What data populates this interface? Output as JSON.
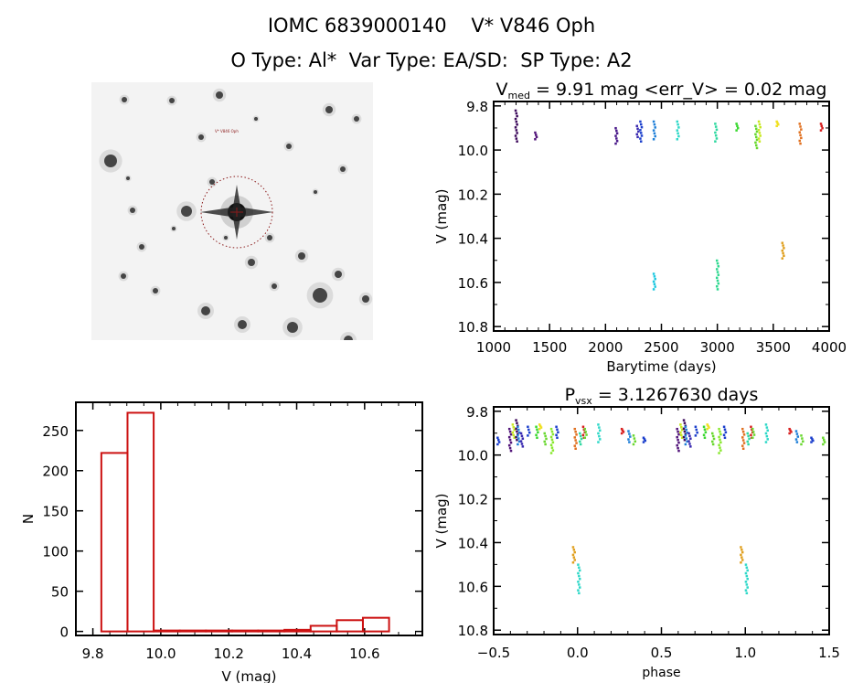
{
  "header": {
    "title_line1": "IOMC 6839000140    V* V846 Oph",
    "title_line2": "O Type: Al*  Var Type: EA/SD:  SP Type: A2"
  },
  "sky_image": {
    "alt": "Sky survey cutout centered on target with dotted red aperture circle and cross marker",
    "target_label": "V* V846 Oph",
    "marker_color": "#8b1a1a"
  },
  "chart_data": [
    {
      "id": "lightcurve",
      "type": "scatter",
      "title": "V_med = 9.91 mag <err_V> = 0.02 mag",
      "title_main": "V",
      "title_sub": "med",
      "title_rest": " = 9.91 mag <err_V> = 0.02 mag",
      "xlabel": "Barytime (days)",
      "ylabel": "V (mag)",
      "xlim": [
        1000,
        4000
      ],
      "ylim": [
        10.82,
        9.78
      ],
      "x_ticks": [
        1000,
        1500,
        2000,
        2500,
        3000,
        3500,
        4000
      ],
      "y_ticks": [
        9.8,
        10.0,
        10.2,
        10.4,
        10.6,
        10.8
      ],
      "y_tick_labels": [
        "9.8",
        "10.0",
        "10.2",
        "10.4",
        "10.6",
        "10.8"
      ],
      "groups": [
        {
          "x": 1205,
          "ymin": 9.82,
          "ymax": 9.96,
          "color": "#3d0a5c"
        },
        {
          "x": 1380,
          "ymin": 9.92,
          "ymax": 9.95,
          "color": "#52157a"
        },
        {
          "x": 2100,
          "ymin": 9.9,
          "ymax": 9.97,
          "color": "#4a1a8a"
        },
        {
          "x": 2290,
          "ymin": 9.89,
          "ymax": 9.94,
          "color": "#3a2ab0"
        },
        {
          "x": 2320,
          "ymin": 9.87,
          "ymax": 9.96,
          "color": "#1b3fcc"
        },
        {
          "x": 2440,
          "ymin": 9.87,
          "ymax": 9.95,
          "color": "#1f7fd8"
        },
        {
          "x": 2440,
          "ymin": 10.56,
          "ymax": 10.63,
          "color": "#1fc8e0"
        },
        {
          "x": 2650,
          "ymin": 9.87,
          "ymax": 9.95,
          "color": "#2fd8c8"
        },
        {
          "x": 2990,
          "ymin": 9.88,
          "ymax": 9.96,
          "color": "#2fd8a0"
        },
        {
          "x": 3005,
          "ymin": 10.5,
          "ymax": 10.63,
          "color": "#2fd890"
        },
        {
          "x": 3180,
          "ymin": 9.88,
          "ymax": 9.91,
          "color": "#3ad830"
        },
        {
          "x": 3350,
          "ymin": 9.89,
          "ymax": 9.99,
          "color": "#6ad830"
        },
        {
          "x": 3380,
          "ymin": 9.87,
          "ymax": 9.96,
          "color": "#c8e820"
        },
        {
          "x": 3540,
          "ymin": 9.87,
          "ymax": 9.89,
          "color": "#f0e020"
        },
        {
          "x": 3590,
          "ymin": 10.42,
          "ymax": 10.49,
          "color": "#e0a020"
        },
        {
          "x": 3745,
          "ymin": 9.88,
          "ymax": 9.97,
          "color": "#e07020"
        },
        {
          "x": 3935,
          "ymin": 9.88,
          "ymax": 9.91,
          "color": "#d82020"
        }
      ]
    },
    {
      "id": "histogram",
      "type": "bar",
      "title": "",
      "xlabel": "V (mag)",
      "ylabel": "N",
      "xlim": [
        9.75,
        10.77
      ],
      "ylim": [
        -5,
        285
      ],
      "x_ticks": [
        9.8,
        10.0,
        10.2,
        10.4,
        10.6
      ],
      "x_tick_labels": [
        "9.8",
        "10.0",
        "10.2",
        "10.4",
        "10.6"
      ],
      "y_ticks": [
        0,
        50,
        100,
        150,
        200,
        250
      ],
      "y_tick_labels": [
        "0",
        "50",
        "100",
        "150",
        "200",
        "250"
      ],
      "bar_color": "#cc1111",
      "bins": [
        {
          "x0": 9.825,
          "x1": 9.902,
          "count": 222
        },
        {
          "x0": 9.902,
          "x1": 9.979,
          "count": 272
        },
        {
          "x0": 9.979,
          "x1": 10.056,
          "count": 1
        },
        {
          "x0": 10.056,
          "x1": 10.133,
          "count": 0
        },
        {
          "x0": 10.133,
          "x1": 10.21,
          "count": 0
        },
        {
          "x0": 10.21,
          "x1": 10.287,
          "count": 0
        },
        {
          "x0": 10.287,
          "x1": 10.364,
          "count": 0
        },
        {
          "x0": 10.364,
          "x1": 10.441,
          "count": 2
        },
        {
          "x0": 10.441,
          "x1": 10.518,
          "count": 7
        },
        {
          "x0": 10.518,
          "x1": 10.595,
          "count": 14
        },
        {
          "x0": 10.595,
          "x1": 10.672,
          "count": 17
        }
      ]
    },
    {
      "id": "phased",
      "type": "scatter",
      "title": "P_vsx = 3.1267630 days",
      "title_main": "P",
      "title_sub": "vsx",
      "title_rest": " = 3.1267630 days",
      "xlabel": "phase",
      "ylabel": "V (mag)",
      "xlim": [
        -0.5,
        1.5
      ],
      "ylim": [
        10.82,
        9.78
      ],
      "x_ticks": [
        -0.5,
        0.0,
        0.5,
        1.0,
        1.5
      ],
      "x_tick_labels": [
        "−0.5",
        "0.0",
        "0.5",
        "1.0",
        "1.5"
      ],
      "y_ticks": [
        9.8,
        10.0,
        10.2,
        10.4,
        10.6,
        10.8
      ],
      "y_tick_labels": [
        "9.8",
        "10.0",
        "10.2",
        "10.4",
        "10.6",
        "10.8"
      ],
      "groups": [
        {
          "x": -0.47,
          "ymin": 9.92,
          "ymax": 9.95,
          "color": "#1b3fcc"
        },
        {
          "x": -0.4,
          "ymin": 9.88,
          "ymax": 9.98,
          "color": "#52157a"
        },
        {
          "x": -0.38,
          "ymin": 9.86,
          "ymax": 9.92,
          "color": "#c8e820"
        },
        {
          "x": -0.36,
          "ymin": 9.84,
          "ymax": 9.93,
          "color": "#3d0a5c"
        },
        {
          "x": -0.35,
          "ymin": 9.87,
          "ymax": 9.95,
          "color": "#1f7fd8"
        },
        {
          "x": -0.33,
          "ymin": 9.9,
          "ymax": 9.96,
          "color": "#3a2ab0"
        },
        {
          "x": -0.29,
          "ymin": 9.87,
          "ymax": 9.91,
          "color": "#1b3fcc"
        },
        {
          "x": -0.24,
          "ymin": 9.87,
          "ymax": 9.92,
          "color": "#3ad830"
        },
        {
          "x": -0.22,
          "ymin": 9.86,
          "ymax": 9.88,
          "color": "#f0e020"
        },
        {
          "x": -0.19,
          "ymin": 9.9,
          "ymax": 9.95,
          "color": "#6ad830"
        },
        {
          "x": -0.15,
          "ymin": 9.88,
          "ymax": 9.99,
          "color": "#8ae830"
        },
        {
          "x": -0.12,
          "ymin": 9.87,
          "ymax": 9.92,
          "color": "#1b3fcc"
        },
        {
          "x": -0.01,
          "ymin": 9.88,
          "ymax": 9.97,
          "color": "#e07020"
        },
        {
          "x": 0.02,
          "ymin": 9.9,
          "ymax": 9.95,
          "color": "#2fd8a0"
        },
        {
          "x": 0.04,
          "ymin": 9.87,
          "ymax": 9.92,
          "color": "#d82020"
        },
        {
          "x": 0.05,
          "ymin": 9.88,
          "ymax": 9.92,
          "color": "#6ad830"
        },
        {
          "x": 0.13,
          "ymin": 9.86,
          "ymax": 9.94,
          "color": "#2fd8c8"
        },
        {
          "x": 0.27,
          "ymin": 9.88,
          "ymax": 9.9,
          "color": "#d82020"
        },
        {
          "x": 0.31,
          "ymin": 9.89,
          "ymax": 9.94,
          "color": "#1f7fd8"
        },
        {
          "x": 0.34,
          "ymin": 9.91,
          "ymax": 9.95,
          "color": "#6ad830"
        },
        {
          "x": 0.4,
          "ymin": 9.92,
          "ymax": 9.94,
          "color": "#1b3fcc"
        },
        {
          "x": -0.02,
          "ymin": 10.42,
          "ymax": 10.49,
          "color": "#e0a020"
        },
        {
          "x": 0.01,
          "ymin": 10.5,
          "ymax": 10.63,
          "color": "#2fd8c8"
        },
        {
          "x": 0.6,
          "ymin": 9.88,
          "ymax": 9.98,
          "color": "#52157a"
        },
        {
          "x": 0.62,
          "ymin": 9.86,
          "ymax": 9.92,
          "color": "#c8e820"
        },
        {
          "x": 0.64,
          "ymin": 9.84,
          "ymax": 9.93,
          "color": "#3d0a5c"
        },
        {
          "x": 0.65,
          "ymin": 9.87,
          "ymax": 9.95,
          "color": "#1f7fd8"
        },
        {
          "x": 0.67,
          "ymin": 9.9,
          "ymax": 9.96,
          "color": "#3a2ab0"
        },
        {
          "x": 0.71,
          "ymin": 9.87,
          "ymax": 9.91,
          "color": "#1b3fcc"
        },
        {
          "x": 0.76,
          "ymin": 9.87,
          "ymax": 9.92,
          "color": "#3ad830"
        },
        {
          "x": 0.78,
          "ymin": 9.86,
          "ymax": 9.88,
          "color": "#f0e020"
        },
        {
          "x": 0.81,
          "ymin": 9.9,
          "ymax": 9.95,
          "color": "#6ad830"
        },
        {
          "x": 0.85,
          "ymin": 9.88,
          "ymax": 9.99,
          "color": "#8ae830"
        },
        {
          "x": 0.88,
          "ymin": 9.87,
          "ymax": 9.92,
          "color": "#1b3fcc"
        },
        {
          "x": 0.98,
          "ymin": 10.42,
          "ymax": 10.49,
          "color": "#e0a020"
        },
        {
          "x": 1.01,
          "ymin": 10.5,
          "ymax": 10.63,
          "color": "#2fd8c8"
        },
        {
          "x": 0.99,
          "ymin": 9.88,
          "ymax": 9.97,
          "color": "#e07020"
        },
        {
          "x": 1.02,
          "ymin": 9.9,
          "ymax": 9.95,
          "color": "#2fd8a0"
        },
        {
          "x": 1.04,
          "ymin": 9.87,
          "ymax": 9.92,
          "color": "#d82020"
        },
        {
          "x": 1.05,
          "ymin": 9.88,
          "ymax": 9.92,
          "color": "#6ad830"
        },
        {
          "x": 1.13,
          "ymin": 9.86,
          "ymax": 9.94,
          "color": "#2fd8c8"
        },
        {
          "x": 1.27,
          "ymin": 9.88,
          "ymax": 9.9,
          "color": "#d82020"
        },
        {
          "x": 1.31,
          "ymin": 9.89,
          "ymax": 9.94,
          "color": "#1f7fd8"
        },
        {
          "x": 1.34,
          "ymin": 9.91,
          "ymax": 9.95,
          "color": "#6ad830"
        },
        {
          "x": 1.4,
          "ymin": 9.92,
          "ymax": 9.94,
          "color": "#1b3fcc"
        },
        {
          "x": 1.47,
          "ymin": 9.92,
          "ymax": 9.95,
          "color": "#6ad830"
        }
      ]
    }
  ]
}
